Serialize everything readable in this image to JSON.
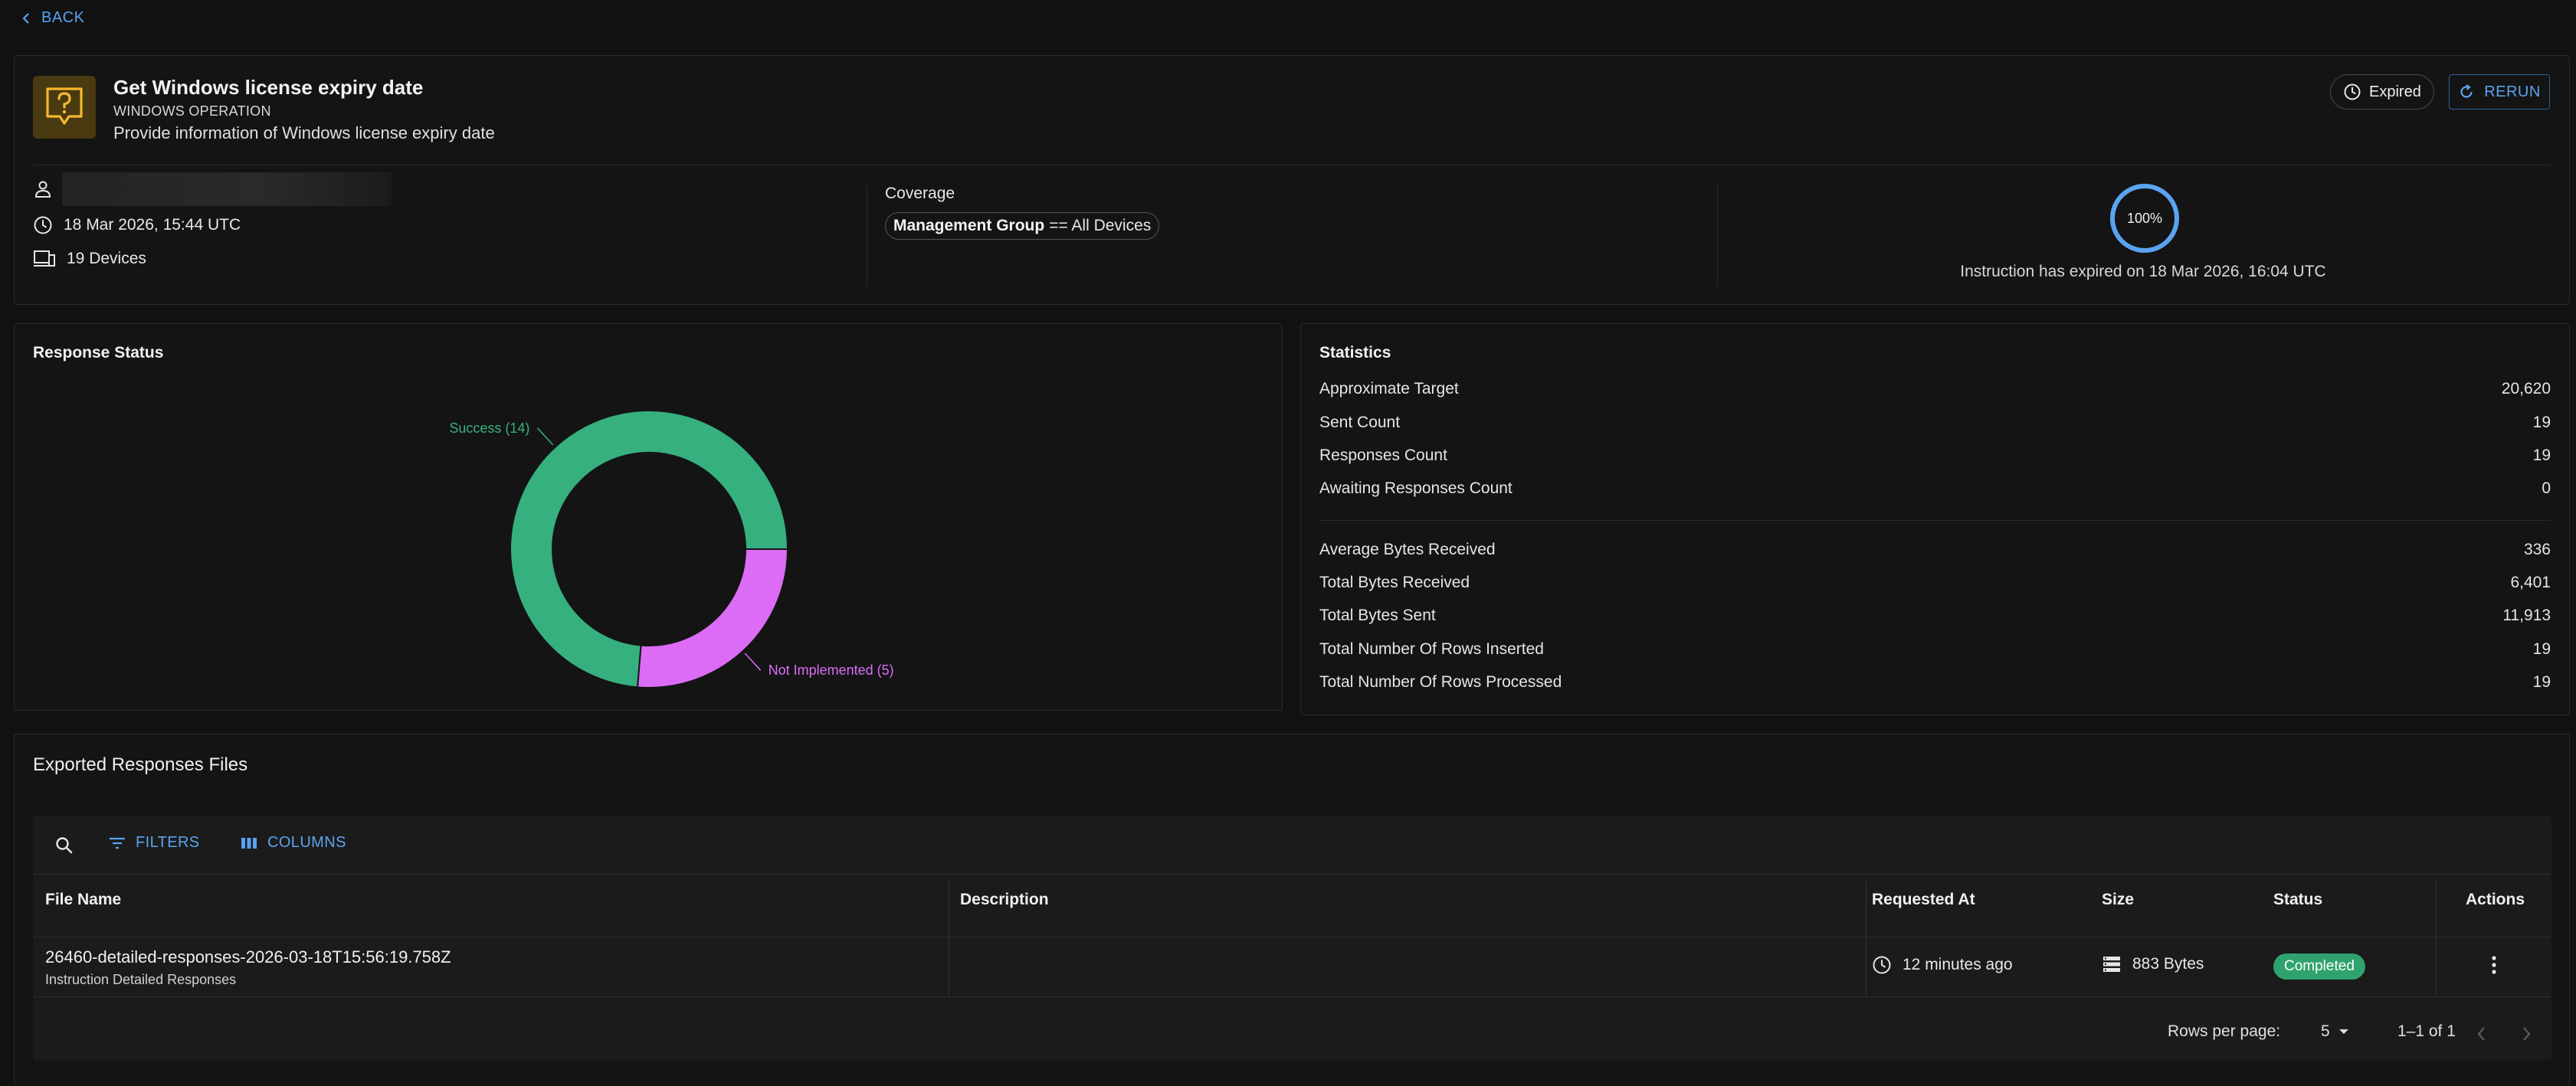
{
  "nav": {
    "back_label": "BACK"
  },
  "instruction": {
    "title": "Get Windows license expiry date",
    "type": "WINDOWS OPERATION",
    "description": "Provide information of Windows license expiry date",
    "status_chip": "Expired",
    "rerun_label": "RERUN",
    "created_at": "18 Mar 2026, 15:44 UTC",
    "devices": "19 Devices",
    "coverage_label": "Coverage",
    "coverage_key": "Management Group",
    "coverage_rest": "== All Devices",
    "progress_percent": "100%",
    "progress_value": 100,
    "expired_message": "Instruction has expired on 18 Mar 2026, 16:04 UTC"
  },
  "response_status": {
    "title": "Response Status",
    "chart_data": {
      "type": "pie",
      "slices": [
        {
          "label": "Success (14)",
          "value": 14,
          "color": "#36b07f"
        },
        {
          "label": "Not Implemented (5)",
          "value": 5,
          "color": "#dc6cf5"
        }
      ]
    }
  },
  "statistics": {
    "title": "Statistics",
    "group1": [
      {
        "label": "Approximate Target",
        "value": "20,620"
      },
      {
        "label": "Sent Count",
        "value": "19"
      },
      {
        "label": "Responses Count",
        "value": "19"
      },
      {
        "label": "Awaiting Responses Count",
        "value": "0"
      }
    ],
    "group2": [
      {
        "label": "Average Bytes Received",
        "value": "336"
      },
      {
        "label": "Total Bytes Received",
        "value": "6,401"
      },
      {
        "label": "Total Bytes Sent",
        "value": "11,913"
      },
      {
        "label": "Total Number Of Rows Inserted",
        "value": "19"
      },
      {
        "label": "Total Number Of Rows Processed",
        "value": "19"
      }
    ]
  },
  "exported": {
    "title": "Exported Responses Files",
    "filters_label": "FILTERS",
    "columns_label": "COLUMNS",
    "headers": {
      "file_name": "File Name",
      "description": "Description",
      "requested_at": "Requested At",
      "size": "Size",
      "status": "Status",
      "actions": "Actions"
    },
    "rows": [
      {
        "file_name": "26460-detailed-responses-2026-03-18T15:56:19.758Z",
        "file_subtitle": "Instruction Detailed Responses",
        "description": "",
        "requested_at": "12 minutes ago",
        "size": "883 Bytes",
        "status": "Completed"
      }
    ],
    "pagination": {
      "rows_per_page_label": "Rows per page:",
      "rows_per_page": "5",
      "range": "1–1 of 1"
    }
  },
  "colors": {
    "accent": "#5aa3f0",
    "success": "#36b07f",
    "not_implemented": "#dc6cf5",
    "badge_completed": "#2fa36e"
  }
}
